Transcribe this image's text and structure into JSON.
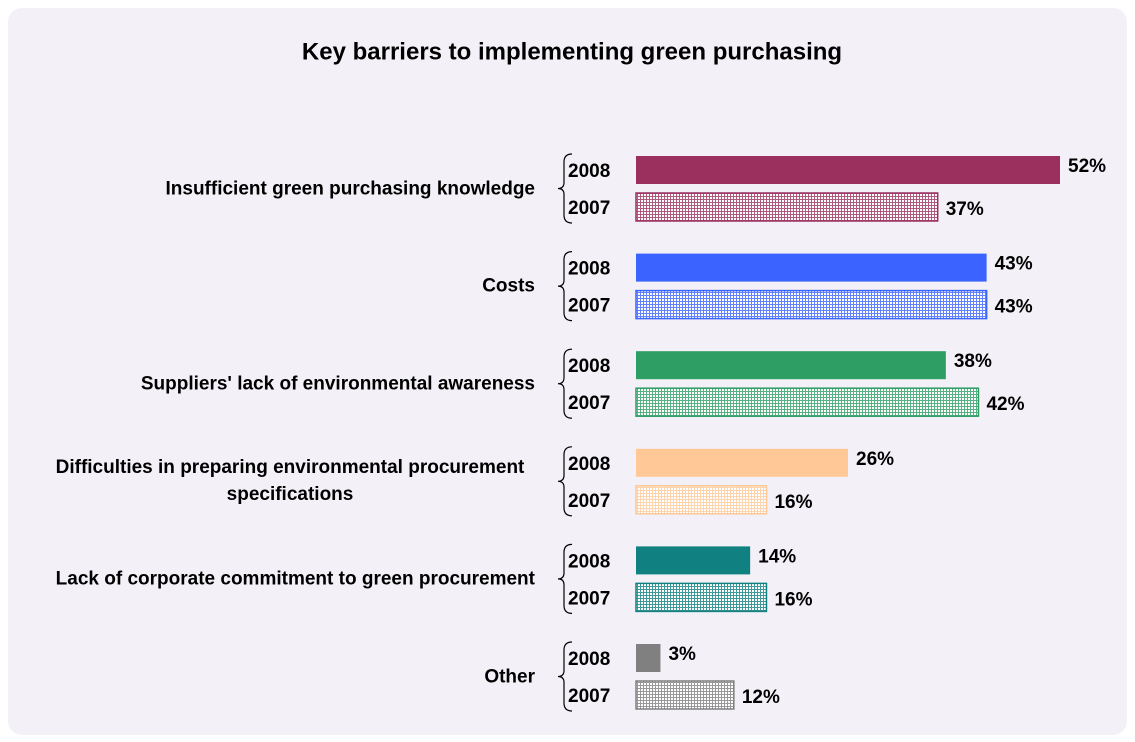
{
  "chart_data": {
    "type": "bar",
    "orientation": "horizontal",
    "title": "Key barriers to implementing green purchasing",
    "categories": [
      "Insufficient green purchasing knowledge",
      "Costs",
      "Suppliers' lack of environmental awareness",
      "Difficulties in preparing environmental procurement specifications",
      "Lack of corporate commitment to green procurement",
      "Other"
    ],
    "category_colors": [
      "#9b2f5e",
      "#3a63ff",
      "#2e9e64",
      "#ffc896",
      "#108080",
      "#808080"
    ],
    "series": [
      {
        "name": "2008",
        "values": [
          52,
          43,
          38,
          26,
          14,
          3
        ],
        "value_labels": [
          "52%",
          "43%",
          "38%",
          "26%",
          "14%",
          "3%"
        ],
        "hatched": false
      },
      {
        "name": "2007",
        "values": [
          37,
          43,
          42,
          16,
          16,
          12
        ],
        "value_labels": [
          "37%",
          "43%",
          "42%",
          "16%",
          "16%",
          "12%"
        ],
        "hatched": true
      }
    ]
  }
}
